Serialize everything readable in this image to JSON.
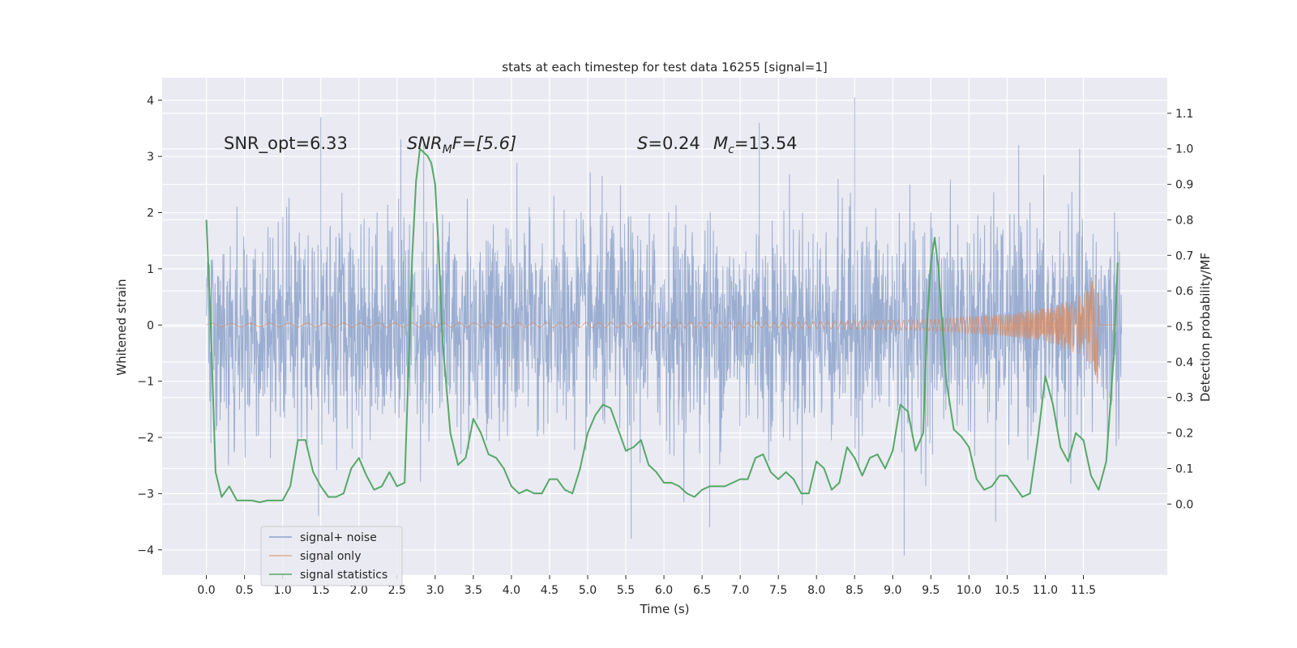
{
  "chart_data": {
    "type": "line",
    "title": "stats at each timestep for test data 16255 [signal=1]",
    "xlabel": "Time (s)",
    "ylabel": "Whitened strain",
    "ylabel_right": "Detection probability/MF",
    "xlim": [
      -0.58,
      12.6
    ],
    "ylim": [
      -4.45,
      4.4
    ],
    "ylim_right": [
      -0.2,
      1.2
    ],
    "grid": true,
    "legend_position": "lower-left",
    "xticks": [
      0.0,
      0.5,
      1.0,
      1.5,
      2.0,
      2.5,
      3.0,
      3.5,
      4.0,
      4.5,
      5.0,
      5.5,
      6.0,
      6.5,
      7.0,
      7.5,
      8.0,
      8.5,
      9.0,
      9.5,
      10.0,
      10.5,
      11.0,
      11.5
    ],
    "xtick_labels": [
      "0.0",
      "0.5",
      "1.0",
      "1.5",
      "2.0",
      "2.5",
      "3.0",
      "3.5",
      "4.0",
      "4.5",
      "5.0",
      "5.5",
      "6.0",
      "6.5",
      "7.0",
      "7.5",
      "8.0",
      "8.5",
      "9.0",
      "9.5",
      "10.0",
      "10.5",
      "11.0",
      "11.5"
    ],
    "yticks_left": [
      -4,
      -3,
      -2,
      -1,
      0,
      1,
      2,
      3,
      4
    ],
    "ytick_labels_left": [
      "−4",
      "−3",
      "−2",
      "−1",
      "0",
      "1",
      "2",
      "3",
      "4"
    ],
    "yticks_right": [
      0.0,
      0.1,
      0.2,
      0.3,
      0.4,
      0.5,
      0.6,
      0.7,
      0.8,
      0.9,
      1.0,
      1.1
    ],
    "ytick_labels_right": [
      "0.0",
      "0.1",
      "0.2",
      "0.3",
      "0.4",
      "0.5",
      "0.6",
      "0.7",
      "0.8",
      "0.9",
      "1.0",
      "1.1"
    ],
    "annotations": {
      "snr_opt": "SNR_opt=6.33",
      "snr_mf_main": "SNR",
      "snr_mf_sub": "M",
      "snr_mf_rest": "F=[5.6]",
      "s_label": "S",
      "s_value": "=0.24",
      "mc_label": "M",
      "mc_sub": "c",
      "mc_value": "=13.54"
    },
    "series": [
      {
        "name": "signal+ noise",
        "color": "#4c72b0",
        "axis": "left",
        "time_range": [
          0.0,
          12.0
        ],
        "envelope_estimate": {
          "typical_peak": 2.0,
          "min": -4.1,
          "max": 4.05
        },
        "notable_peaks": [
          {
            "t": 1.5,
            "v": 3.7
          },
          {
            "t": 2.55,
            "v": 3.3
          },
          {
            "t": 2.85,
            "v": 3.3
          },
          {
            "t": 7.25,
            "v": 3.6
          },
          {
            "t": 8.5,
            "v": 4.05
          },
          {
            "t": 5.57,
            "v": -3.8
          },
          {
            "t": 9.15,
            "v": -4.1
          },
          {
            "t": 1.47,
            "v": -3.4
          },
          {
            "t": 6.6,
            "v": -3.6
          },
          {
            "t": 10.35,
            "v": -3.5
          }
        ]
      },
      {
        "name": "signal only",
        "color": "#dd8452",
        "axis": "left",
        "description_points": [
          {
            "t": 0.0,
            "amp": 0.03
          },
          {
            "t": 7.5,
            "amp": 0.05
          },
          {
            "t": 9.5,
            "amp": 0.1
          },
          {
            "t": 10.5,
            "amp": 0.2
          },
          {
            "t": 11.0,
            "amp": 0.3
          },
          {
            "t": 11.5,
            "amp": 0.55
          },
          {
            "t": 11.65,
            "amp": 0.85
          },
          {
            "t": 11.69,
            "amp": 1.2
          },
          {
            "t": 11.7,
            "amp": 0.0
          }
        ]
      },
      {
        "name": "signal statistics",
        "color": "#55a868",
        "axis": "right",
        "x": [
          0.0,
          0.05,
          0.12,
          0.2,
          0.3,
          0.4,
          0.5,
          0.6,
          0.7,
          0.8,
          0.9,
          1.0,
          1.1,
          1.2,
          1.3,
          1.4,
          1.5,
          1.6,
          1.7,
          1.8,
          1.9,
          2.0,
          2.1,
          2.2,
          2.3,
          2.4,
          2.5,
          2.6,
          2.7,
          2.75,
          2.8,
          2.85,
          2.9,
          2.95,
          3.0,
          3.05,
          3.1,
          3.2,
          3.3,
          3.4,
          3.5,
          3.6,
          3.7,
          3.8,
          3.9,
          4.0,
          4.1,
          4.2,
          4.3,
          4.4,
          4.5,
          4.6,
          4.7,
          4.8,
          4.9,
          5.0,
          5.1,
          5.2,
          5.3,
          5.4,
          5.5,
          5.6,
          5.7,
          5.8,
          5.9,
          6.0,
          6.1,
          6.2,
          6.3,
          6.4,
          6.5,
          6.6,
          6.7,
          6.8,
          6.9,
          7.0,
          7.1,
          7.2,
          7.3,
          7.4,
          7.5,
          7.6,
          7.7,
          7.8,
          7.9,
          8.0,
          8.1,
          8.2,
          8.3,
          8.4,
          8.5,
          8.6,
          8.7,
          8.8,
          8.9,
          9.0,
          9.1,
          9.2,
          9.3,
          9.4,
          9.45,
          9.5,
          9.55,
          9.6,
          9.7,
          9.8,
          9.9,
          10.0,
          10.1,
          10.2,
          10.3,
          10.4,
          10.5,
          10.6,
          10.7,
          10.8,
          10.9,
          11.0,
          11.05,
          11.1,
          11.2,
          11.3,
          11.4,
          11.5,
          11.6,
          11.7,
          11.8,
          11.9,
          11.95
        ],
        "values": [
          0.8,
          0.55,
          0.09,
          0.02,
          0.05,
          0.01,
          0.01,
          0.01,
          0.005,
          0.01,
          0.01,
          0.01,
          0.05,
          0.18,
          0.18,
          0.09,
          0.05,
          0.02,
          0.02,
          0.03,
          0.1,
          0.13,
          0.08,
          0.04,
          0.05,
          0.09,
          0.05,
          0.06,
          0.7,
          0.91,
          1.0,
          0.99,
          0.98,
          0.96,
          0.9,
          0.7,
          0.45,
          0.2,
          0.11,
          0.13,
          0.24,
          0.2,
          0.14,
          0.13,
          0.1,
          0.05,
          0.03,
          0.04,
          0.03,
          0.03,
          0.07,
          0.07,
          0.04,
          0.03,
          0.1,
          0.2,
          0.25,
          0.28,
          0.27,
          0.21,
          0.15,
          0.16,
          0.18,
          0.11,
          0.09,
          0.06,
          0.06,
          0.05,
          0.03,
          0.02,
          0.04,
          0.05,
          0.05,
          0.05,
          0.06,
          0.07,
          0.07,
          0.13,
          0.14,
          0.09,
          0.07,
          0.09,
          0.07,
          0.03,
          0.03,
          0.12,
          0.1,
          0.04,
          0.06,
          0.16,
          0.13,
          0.08,
          0.13,
          0.14,
          0.1,
          0.15,
          0.28,
          0.26,
          0.15,
          0.2,
          0.5,
          0.68,
          0.75,
          0.66,
          0.35,
          0.21,
          0.19,
          0.16,
          0.07,
          0.04,
          0.05,
          0.08,
          0.08,
          0.05,
          0.02,
          0.03,
          0.18,
          0.36,
          0.32,
          0.28,
          0.16,
          0.12,
          0.2,
          0.18,
          0.08,
          0.04,
          0.12,
          0.42,
          0.68
        ]
      }
    ]
  }
}
